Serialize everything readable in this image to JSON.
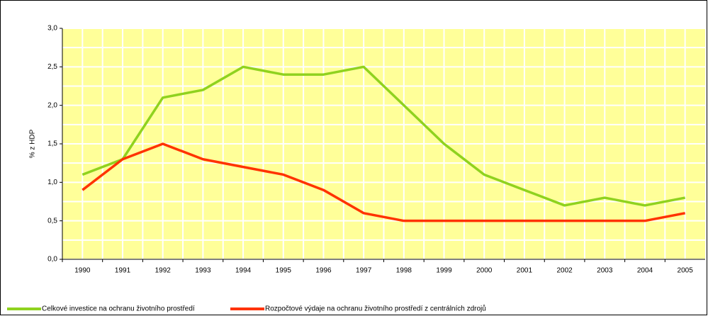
{
  "chart_data": {
    "type": "line",
    "ylabel": "% z HDP",
    "categories": [
      "1990",
      "1991",
      "1992",
      "1993",
      "1994",
      "1995",
      "1996",
      "1997",
      "1998",
      "1999",
      "2000",
      "2001",
      "2002",
      "2003",
      "2004",
      "2005"
    ],
    "series": [
      {
        "name": "Celkové investice na ochranu životního prostředí",
        "color": "#8fd21f",
        "values": [
          1.1,
          1.3,
          2.1,
          2.2,
          2.5,
          2.4,
          2.4,
          2.5,
          2.0,
          1.5,
          1.1,
          0.9,
          0.7,
          0.8,
          0.7,
          0.8
        ]
      },
      {
        "name": "Rozpočtové výdaje na ochranu životního prostředí z centrálních zdrojů",
        "color": "#ff3300",
        "values": [
          0.9,
          1.3,
          1.5,
          1.3,
          1.2,
          1.1,
          0.9,
          0.6,
          0.5,
          0.5,
          0.5,
          0.5,
          0.5,
          0.5,
          0.5,
          0.6
        ]
      }
    ],
    "ylim": [
      0,
      3
    ],
    "yticks": [
      {
        "value": 0,
        "label": "0,0"
      },
      {
        "value": 0.5,
        "label": "0,5"
      },
      {
        "value": 1,
        "label": "1,0"
      },
      {
        "value": 1.5,
        "label": "1,5"
      },
      {
        "value": 2,
        "label": "2,0"
      },
      {
        "value": 2.5,
        "label": "2,5"
      },
      {
        "value": 3,
        "label": "3,0"
      }
    ],
    "grid": true,
    "plot_background": "#ffff99",
    "legend": "bottom"
  }
}
